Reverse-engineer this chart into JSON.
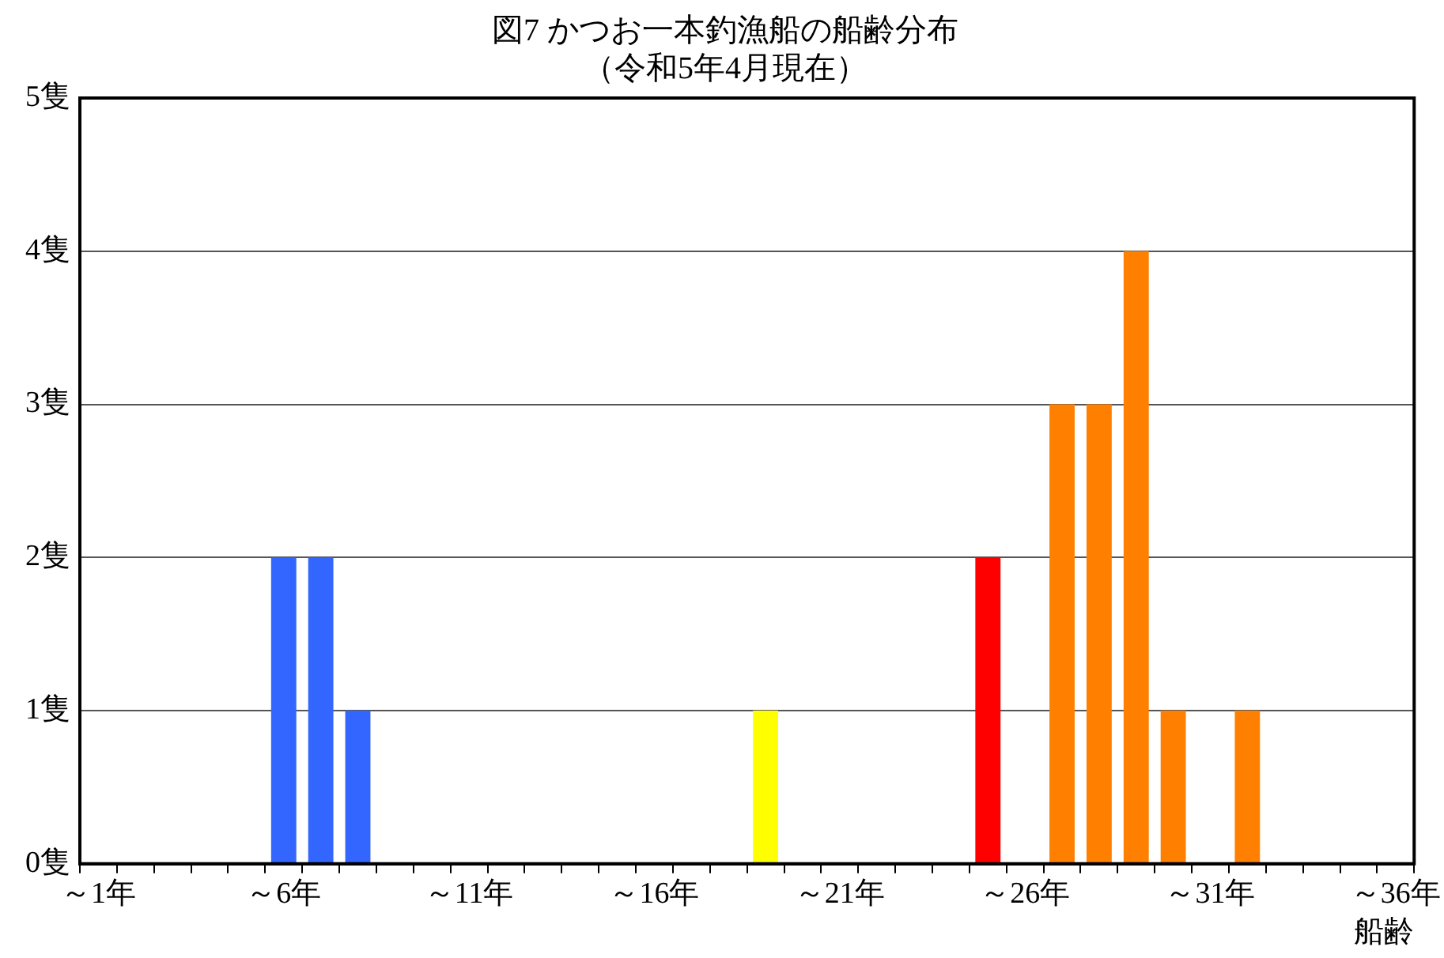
{
  "chart_data": {
    "type": "bar",
    "title": "図7 かつお一本釣漁船の船齢分布",
    "subtitle": "（令和5年4月現在）",
    "xlabel": "船齢",
    "categories": [
      "～1年",
      null,
      null,
      null,
      null,
      "～6年",
      null,
      null,
      null,
      null,
      "～11年",
      null,
      null,
      null,
      null,
      "～16年",
      null,
      null,
      null,
      null,
      "～21年",
      null,
      null,
      null,
      null,
      "～26年",
      null,
      null,
      null,
      null,
      "～31年",
      null,
      null,
      null,
      null,
      "～36年"
    ],
    "values": [
      0,
      0,
      0,
      0,
      0,
      2,
      2,
      1,
      0,
      0,
      0,
      0,
      0,
      0,
      0,
      0,
      0,
      0,
      1,
      0,
      0,
      0,
      0,
      0,
      2,
      0,
      3,
      3,
      4,
      1,
      0,
      1,
      0,
      0,
      0,
      0
    ],
    "colors": [
      "#3366ff",
      "#3366ff",
      "#3366ff",
      "#3366ff",
      "#3366ff",
      "#3366ff",
      "#3366ff",
      "#3366ff",
      "#3366ff",
      "#3366ff",
      "#3366ff",
      "#3366ff",
      "#3366ff",
      "#3366ff",
      "#3366ff",
      "#3366ff",
      "#3366ff",
      "#3366ff",
      "#ffff00",
      "#ff0000",
      "#ff0000",
      "#ff0000",
      "#ff0000",
      "#ff0000",
      "#ff0000",
      "#ff8000",
      "#ff8000",
      "#ff8000",
      "#ff8000",
      "#ff8000",
      "#ff8000",
      "#ff8000",
      "#ff8000",
      "#ff8000",
      "#ff8000",
      "#ff8000"
    ],
    "ylim": [
      0,
      5
    ],
    "yticks": [
      {
        "value": 0,
        "label": "0隻"
      },
      {
        "value": 1,
        "label": "1隻"
      },
      {
        "value": 2,
        "label": "2隻"
      },
      {
        "value": 3,
        "label": "3隻"
      },
      {
        "value": 4,
        "label": "4隻"
      },
      {
        "value": 5,
        "label": "5隻"
      }
    ],
    "grid": "y",
    "legend": false
  }
}
